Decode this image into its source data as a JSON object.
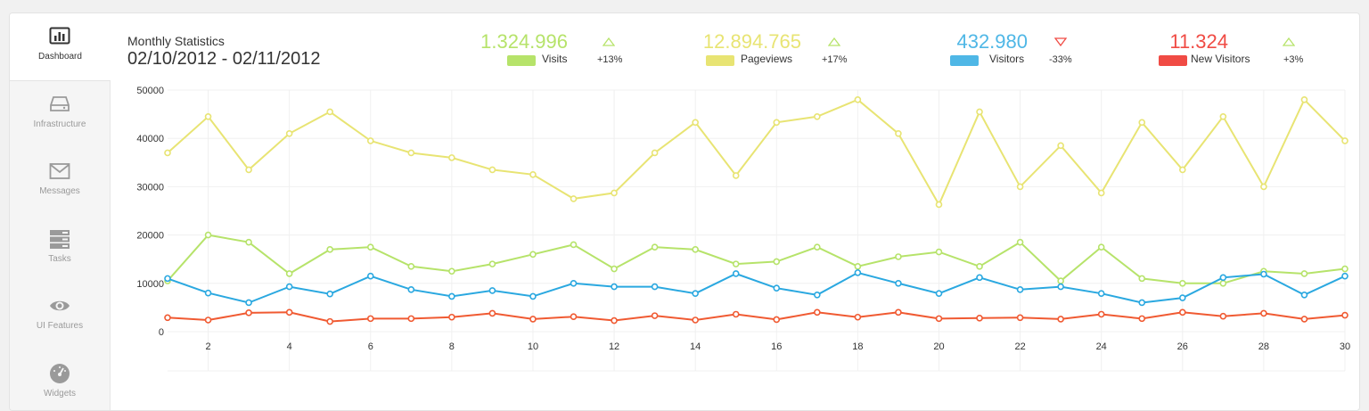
{
  "sidebar": {
    "items": [
      {
        "label": "Dashboard",
        "icon": "bar-chart-icon",
        "active": true
      },
      {
        "label": "Infrastructure",
        "icon": "hard-drive-icon",
        "active": false
      },
      {
        "label": "Messages",
        "icon": "envelope-icon",
        "active": false
      },
      {
        "label": "Tasks",
        "icon": "server-stack-icon",
        "active": false
      },
      {
        "label": "UI Features",
        "icon": "eye-icon",
        "active": false
      },
      {
        "label": "Widgets",
        "icon": "dashboard-gauge-icon",
        "active": false
      }
    ]
  },
  "header": {
    "title": "Monthly Statistics",
    "date_range": "02/10/2012 - 02/11/2012"
  },
  "stats": [
    {
      "value": "1.324.996",
      "label": "Visits",
      "change": "+13%",
      "trend": "up",
      "color": "#b6e36a",
      "trend_color": "#b6e36a"
    },
    {
      "value": "12.894.765",
      "label": "Pageviews",
      "change": "+17%",
      "trend": "up",
      "color": "#e8e473",
      "trend_color": "#b6e36a"
    },
    {
      "value": "432.980",
      "label": "Visitors",
      "change": "-33%",
      "trend": "down",
      "color": "#4fb7e6",
      "trend_color": "#f04b44"
    },
    {
      "value": "11.324",
      "label": "New Visitors",
      "change": "+3%",
      "trend": "up",
      "color": "#f04b44",
      "trend_color": "#b6e36a"
    }
  ],
  "chart_data": {
    "type": "line",
    "title": "Monthly Statistics",
    "xlabel": "",
    "ylabel": "",
    "ylim": [
      0,
      50000
    ],
    "yticks": [
      0,
      10000,
      20000,
      30000,
      40000,
      50000
    ],
    "xticks": [
      2,
      4,
      6,
      8,
      10,
      12,
      14,
      16,
      18,
      20,
      22,
      24,
      26,
      28,
      30
    ],
    "x": [
      1,
      2,
      3,
      4,
      5,
      6,
      7,
      8,
      9,
      10,
      11,
      12,
      13,
      14,
      15,
      16,
      17,
      18,
      19,
      20,
      21,
      22,
      23,
      24,
      25,
      26,
      27,
      28,
      29,
      30
    ],
    "series": [
      {
        "name": "Pageviews",
        "color": "#e8e473",
        "values": [
          37000,
          44500,
          33500,
          41000,
          45500,
          39500,
          37000,
          36000,
          33500,
          32500,
          27500,
          28700,
          37000,
          43300,
          32300,
          43300,
          44500,
          48000,
          41000,
          26300,
          45500,
          30000,
          38500,
          28700,
          43300,
          33500,
          44500,
          30000,
          48000,
          39500
        ]
      },
      {
        "name": "Visits",
        "color": "#b6e36a",
        "values": [
          10500,
          20000,
          18500,
          12000,
          17000,
          17500,
          13500,
          12500,
          14000,
          16000,
          18000,
          13000,
          17500,
          17000,
          14000,
          14500,
          17500,
          13500,
          15500,
          16500,
          13500,
          18500,
          10500,
          17500,
          11000,
          10000,
          10000,
          12500,
          12000,
          13000
        ]
      },
      {
        "name": "Visitors",
        "color": "#2aa8e0",
        "values": [
          11000,
          8000,
          6000,
          9300,
          7800,
          11500,
          8700,
          7300,
          8500,
          7300,
          10000,
          9300,
          9300,
          7900,
          12000,
          9000,
          7600,
          12200,
          10000,
          7900,
          11200,
          8700,
          9300,
          7900,
          6000,
          7000,
          11200,
          11900,
          7600,
          11500
        ]
      },
      {
        "name": "New Visitors",
        "color": "#f05a32",
        "values": [
          2900,
          2400,
          3900,
          4000,
          2100,
          2700,
          2700,
          3000,
          3800,
          2600,
          3100,
          2300,
          3300,
          2400,
          3600,
          2500,
          4000,
          3000,
          4000,
          2700,
          2800,
          2900,
          2600,
          3600,
          2700,
          4000,
          3200,
          3800,
          2600,
          3400
        ]
      }
    ]
  }
}
